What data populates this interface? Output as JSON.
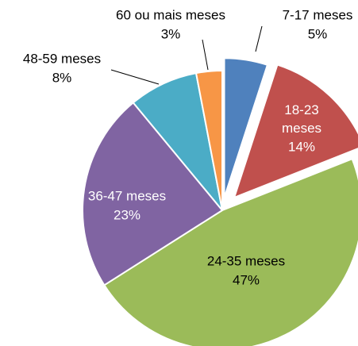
{
  "chart_data": {
    "type": "pie",
    "categories": [
      "7-17 meses",
      "18-23 meses",
      "24-35 meses",
      "36-47 meses",
      "48-59 meses",
      "60 ou mais meses"
    ],
    "values": [
      5,
      14,
      47,
      23,
      8,
      3
    ],
    "value_labels": [
      "5%",
      "14%",
      "47%",
      "23%",
      "8%",
      "3%"
    ],
    "colors": [
      "#4f81bd",
      "#c0504d",
      "#9bbb59",
      "#8064a2",
      "#4bacc6",
      "#f79646"
    ],
    "explode": [
      true,
      true,
      false,
      false,
      false,
      false
    ]
  }
}
